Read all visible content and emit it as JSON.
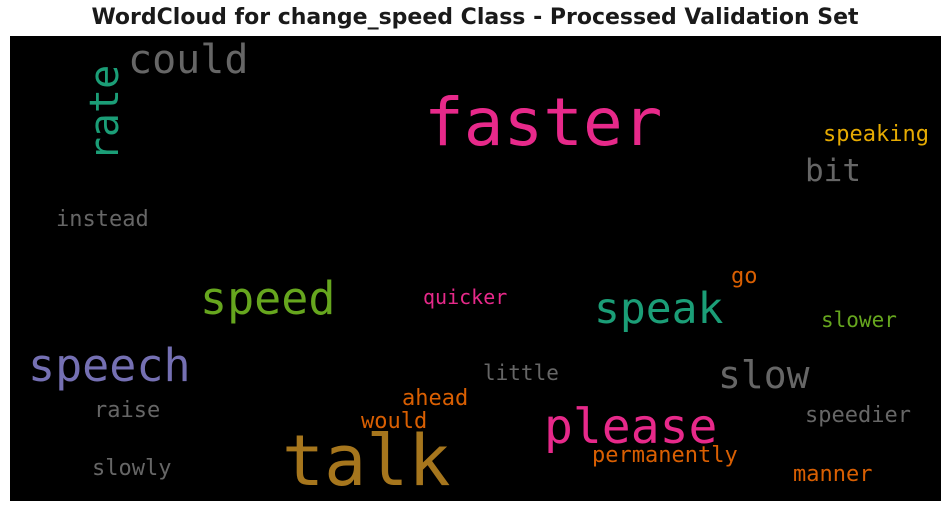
{
  "title": "WordCloud for change_speed Class - Processed Validation Set",
  "background": "#000000",
  "words": [
    {
      "id": "faster",
      "text": "faster",
      "color": "#e7298a"
    },
    {
      "id": "talk",
      "text": "talk",
      "color": "#a6761d"
    },
    {
      "id": "speech",
      "text": "speech",
      "color": "#7570b3"
    },
    {
      "id": "please",
      "text": "please",
      "color": "#e7298a"
    },
    {
      "id": "speed",
      "text": "speed",
      "color": "#66a61e"
    },
    {
      "id": "speak",
      "text": "speak",
      "color": "#1b9e77"
    },
    {
      "id": "could",
      "text": "could",
      "color": "#666666"
    },
    {
      "id": "rate",
      "text": "rate",
      "color": "#1b9e77"
    },
    {
      "id": "slow",
      "text": "slow",
      "color": "#666666"
    },
    {
      "id": "bit",
      "text": "bit",
      "color": "#666666"
    },
    {
      "id": "speaking",
      "text": "speaking",
      "color": "#e6ab02"
    },
    {
      "id": "instead",
      "text": "instead",
      "color": "#666666"
    },
    {
      "id": "quicker",
      "text": "quicker",
      "color": "#e7298a"
    },
    {
      "id": "go",
      "text": "go",
      "color": "#d95f02"
    },
    {
      "id": "slower",
      "text": "slower",
      "color": "#66a61e"
    },
    {
      "id": "little",
      "text": "little",
      "color": "#666666"
    },
    {
      "id": "ahead",
      "text": "ahead",
      "color": "#d95f02"
    },
    {
      "id": "raise",
      "text": "raise",
      "color": "#666666"
    },
    {
      "id": "would",
      "text": "would",
      "color": "#d95f02"
    },
    {
      "id": "speedier",
      "text": "speedier",
      "color": "#666666"
    },
    {
      "id": "slowly",
      "text": "slowly",
      "color": "#666666"
    },
    {
      "id": "permanently",
      "text": "permanently",
      "color": "#d95f02"
    },
    {
      "id": "manner",
      "text": "manner",
      "color": "#d95f02"
    }
  ]
}
